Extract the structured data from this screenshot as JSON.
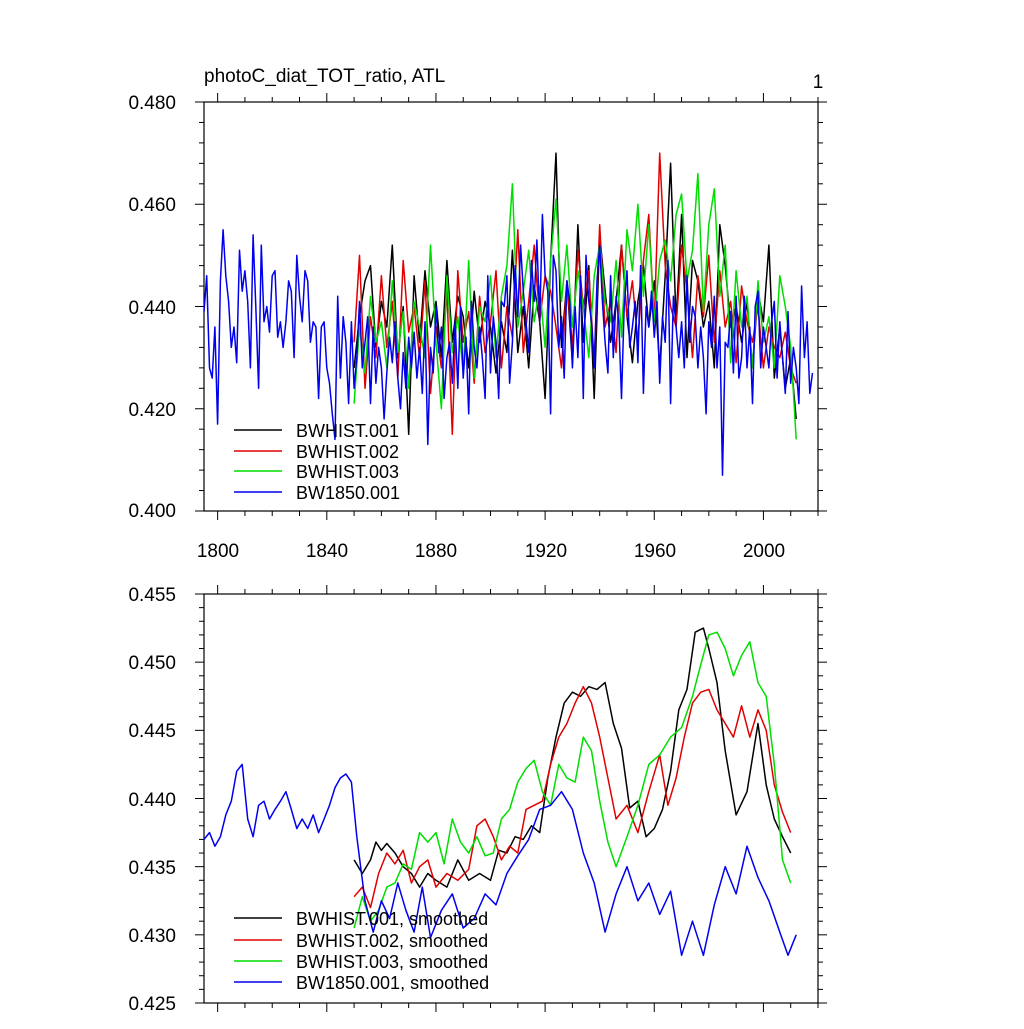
{
  "chart_data": [
    {
      "type": "line",
      "title": "photoC_diat_TOT_ratio, ATL",
      "panel_label": "1",
      "xlabel": "",
      "ylabel": "",
      "xlim": [
        1795,
        2020
      ],
      "ylim": [
        0.4,
        0.48
      ],
      "x_ticks": [
        1800,
        1840,
        1880,
        1920,
        1960,
        2000
      ],
      "y_ticks": [
        "0.400",
        "0.420",
        "0.440",
        "0.460",
        "0.480"
      ],
      "grid": false,
      "legend_position": "bottom-left",
      "series": [
        {
          "name": "BWHIST.001",
          "color": "#000000",
          "x_start": 1850,
          "x_step": 2,
          "values": [
            0.428,
            0.438,
            0.445,
            0.448,
            0.432,
            0.441,
            0.436,
            0.452,
            0.43,
            0.44,
            0.415,
            0.446,
            0.433,
            0.447,
            0.436,
            0.441,
            0.43,
            0.449,
            0.433,
            0.442,
            0.438,
            0.428,
            0.443,
            0.433,
            0.441,
            0.436,
            0.427,
            0.437,
            0.431,
            0.451,
            0.431,
            0.44,
            0.428,
            0.444,
            0.437,
            0.422,
            0.449,
            0.47,
            0.432,
            0.445,
            0.429,
            0.456,
            0.433,
            0.448,
            0.422,
            0.454,
            0.443,
            0.433,
            0.441,
            0.452,
            0.438,
            0.429,
            0.441,
            0.448,
            0.436,
            0.445,
            0.428,
            0.446,
            0.468,
            0.437,
            0.458,
            0.43,
            0.449,
            0.445,
            0.436,
            0.441,
            0.428,
            0.456,
            0.448,
            0.436,
            0.44,
            0.433,
            0.441,
            0.428,
            0.443,
            0.437,
            0.452,
            0.426,
            0.436,
            0.424,
            0.43,
            0.418
          ]
        },
        {
          "name": "BWHIST.002",
          "color": "#e00000",
          "x_start": 1850,
          "x_step": 2,
          "values": [
            0.433,
            0.45,
            0.424,
            0.438,
            0.43,
            0.446,
            0.432,
            0.441,
            0.426,
            0.449,
            0.435,
            0.44,
            0.43,
            0.445,
            0.423,
            0.436,
            0.428,
            0.443,
            0.415,
            0.447,
            0.433,
            0.439,
            0.425,
            0.442,
            0.431,
            0.437,
            0.447,
            0.428,
            0.44,
            0.434,
            0.455,
            0.431,
            0.441,
            0.452,
            0.437,
            0.446,
            0.443,
            0.436,
            0.428,
            0.445,
            0.432,
            0.451,
            0.44,
            0.447,
            0.429,
            0.456,
            0.436,
            0.441,
            0.431,
            0.452,
            0.438,
            0.445,
            0.433,
            0.449,
            0.458,
            0.437,
            0.47,
            0.448,
            0.44,
            0.436,
            0.452,
            0.443,
            0.43,
            0.446,
            0.438,
            0.45,
            0.433,
            0.447,
            0.436,
            0.441,
            0.429,
            0.444,
            0.437,
            0.433,
            0.44,
            0.428,
            0.436,
            0.432,
            0.43,
            0.435,
            0.428,
            0.425
          ]
        },
        {
          "name": "BWHIST.003",
          "color": "#00dd00",
          "x_start": 1850,
          "x_step": 2,
          "values": [
            0.421,
            0.436,
            0.427,
            0.442,
            0.433,
            0.437,
            0.428,
            0.445,
            0.431,
            0.439,
            0.424,
            0.441,
            0.436,
            0.43,
            0.452,
            0.433,
            0.42,
            0.446,
            0.431,
            0.438,
            0.427,
            0.449,
            0.426,
            0.44,
            0.437,
            0.446,
            0.43,
            0.442,
            0.448,
            0.464,
            0.436,
            0.443,
            0.451,
            0.437,
            0.444,
            0.432,
            0.449,
            0.461,
            0.441,
            0.452,
            0.436,
            0.447,
            0.44,
            0.43,
            0.446,
            0.452,
            0.441,
            0.437,
            0.449,
            0.434,
            0.455,
            0.447,
            0.46,
            0.442,
            0.456,
            0.437,
            0.449,
            0.453,
            0.445,
            0.458,
            0.462,
            0.445,
            0.451,
            0.466,
            0.439,
            0.456,
            0.463,
            0.442,
            0.452,
            0.429,
            0.447,
            0.436,
            0.442,
            0.428,
            0.445,
            0.433,
            0.438,
            0.428,
            0.446,
            0.44,
            0.432,
            0.414
          ]
        },
        {
          "name": "BW1850.001",
          "color": "#0000ee",
          "x_start": 1795,
          "x_step": 1,
          "values": [
            0.439,
            0.446,
            0.428,
            0.426,
            0.436,
            0.417,
            0.445,
            0.455,
            0.446,
            0.441,
            0.432,
            0.436,
            0.429,
            0.451,
            0.443,
            0.447,
            0.441,
            0.428,
            0.454,
            0.44,
            0.424,
            0.452,
            0.437,
            0.44,
            0.435,
            0.446,
            0.447,
            0.434,
            0.437,
            0.432,
            0.437,
            0.445,
            0.443,
            0.43,
            0.45,
            0.442,
            0.437,
            0.447,
            0.445,
            0.433,
            0.437,
            0.436,
            0.422,
            0.436,
            0.437,
            0.428,
            0.425,
            0.419,
            0.414,
            0.442,
            0.426,
            0.438,
            0.433,
            0.421,
            0.437,
            0.424,
            0.43,
            0.441,
            0.428,
            0.433,
            0.438,
            0.421,
            0.436,
            0.425,
            0.432,
            0.428,
            0.418,
            0.427,
            0.434,
            0.429,
            0.437,
            0.426,
            0.42,
            0.431,
            0.424,
            0.434,
            0.428,
            0.435,
            0.426,
            0.432,
            0.423,
            0.437,
            0.413,
            0.432,
            0.427,
            0.44,
            0.431,
            0.436,
            0.422,
            0.43,
            0.433,
            0.425,
            0.437,
            0.424,
            0.44,
            0.426,
            0.434,
            0.419,
            0.441,
            0.432,
            0.428,
            0.436,
            0.43,
            0.422,
            0.446,
            0.427,
            0.438,
            0.433,
            0.422,
            0.441,
            0.44,
            0.446,
            0.425,
            0.433,
            0.448,
            0.438,
            0.452,
            0.443,
            0.437,
            0.431,
            0.449,
            0.441,
            0.453,
            0.437,
            0.458,
            0.446,
            0.443,
            0.419,
            0.45,
            0.447,
            0.432,
            0.438,
            0.426,
            0.445,
            0.441,
            0.428,
            0.44,
            0.43,
            0.446,
            0.422,
            0.45,
            0.441,
            0.437,
            0.428,
            0.445,
            0.452,
            0.441,
            0.433,
            0.427,
            0.446,
            0.43,
            0.442,
            0.437,
            0.422,
            0.44,
            0.447,
            0.432,
            0.436,
            0.441,
            0.429,
            0.448,
            0.423,
            0.44,
            0.436,
            0.443,
            0.434,
            0.441,
            0.425,
            0.438,
            0.433,
            0.449,
            0.421,
            0.442,
            0.436,
            0.43,
            0.437,
            0.428,
            0.446,
            0.433,
            0.44,
            0.438,
            0.428,
            0.436,
            0.43,
            0.419,
            0.437,
            0.432,
            0.442,
            0.428,
            0.436,
            0.407,
            0.433,
            0.432,
            0.439,
            0.427,
            0.442,
            0.426,
            0.43,
            0.442,
            0.428,
            0.436,
            0.421,
            0.44,
            0.443,
            0.428,
            0.436,
            0.432,
            0.428,
            0.437,
            0.441,
            0.426,
            0.437,
            0.43,
            0.423,
            0.439,
            0.425,
            0.432,
            0.428,
            0.421,
            0.444,
            0.43,
            0.437,
            0.423,
            0.427
          ]
        }
      ]
    },
    {
      "type": "line",
      "title": "",
      "xlabel": "",
      "ylabel": "",
      "xlim": [
        1795,
        2020
      ],
      "ylim": [
        0.425,
        0.455
      ],
      "y_ticks": [
        "0.425",
        "0.430",
        "0.435",
        "0.440",
        "0.445",
        "0.450",
        "0.455"
      ],
      "grid": false,
      "legend_position": "bottom-left",
      "series": [
        {
          "name": "BWHIST.001, smoothed",
          "color": "#000000",
          "x": [
            1850,
            1853,
            1856,
            1858,
            1860,
            1862,
            1865,
            1868,
            1871,
            1874,
            1877,
            1880,
            1884,
            1888,
            1892,
            1896,
            1900,
            1903,
            1906,
            1909,
            1912,
            1915,
            1918,
            1921,
            1924,
            1927,
            1930,
            1933,
            1936,
            1939,
            1942,
            1945,
            1948,
            1951,
            1954,
            1957,
            1960,
            1963,
            1966,
            1969,
            1972,
            1975,
            1978,
            1980,
            1983,
            1986,
            1990,
            1994,
            1998,
            2001,
            2004,
            2007,
            2010
          ],
          "values": [
            0.4355,
            0.4345,
            0.4355,
            0.4368,
            0.4362,
            0.4367,
            0.436,
            0.435,
            0.4345,
            0.4335,
            0.4345,
            0.434,
            0.4335,
            0.4355,
            0.434,
            0.4345,
            0.434,
            0.4362,
            0.436,
            0.4372,
            0.437,
            0.438,
            0.4375,
            0.4415,
            0.4445,
            0.447,
            0.4478,
            0.4475,
            0.4482,
            0.448,
            0.4485,
            0.4455,
            0.4437,
            0.4393,
            0.4398,
            0.4372,
            0.4378,
            0.4392,
            0.442,
            0.4465,
            0.448,
            0.4522,
            0.4525,
            0.451,
            0.4485,
            0.4435,
            0.4388,
            0.4405,
            0.4455,
            0.441,
            0.4385,
            0.4372,
            0.436
          ]
        },
        {
          "name": "BWHIST.002, smoothed",
          "color": "#e00000",
          "x": [
            1850,
            1853,
            1856,
            1859,
            1862,
            1865,
            1868,
            1871,
            1874,
            1877,
            1880,
            1884,
            1888,
            1892,
            1895,
            1898,
            1901,
            1904,
            1907,
            1910,
            1913,
            1916,
            1919,
            1922,
            1925,
            1928,
            1931,
            1934,
            1937,
            1940,
            1943,
            1946,
            1950,
            1954,
            1958,
            1962,
            1965,
            1968,
            1971,
            1974,
            1977,
            1980,
            1983,
            1986,
            1989,
            1992,
            1995,
            1998,
            2001,
            2004,
            2007,
            2010
          ],
          "values": [
            0.4328,
            0.4335,
            0.432,
            0.4345,
            0.436,
            0.4352,
            0.4362,
            0.4338,
            0.435,
            0.4355,
            0.4335,
            0.4345,
            0.434,
            0.4348,
            0.438,
            0.4385,
            0.4372,
            0.4355,
            0.4365,
            0.436,
            0.4392,
            0.4395,
            0.4398,
            0.4425,
            0.4445,
            0.4455,
            0.447,
            0.4482,
            0.447,
            0.4445,
            0.4415,
            0.4385,
            0.4395,
            0.4375,
            0.4405,
            0.4432,
            0.4395,
            0.4415,
            0.4445,
            0.447,
            0.4478,
            0.448,
            0.4465,
            0.4455,
            0.4445,
            0.4468,
            0.4445,
            0.4465,
            0.445,
            0.441,
            0.439,
            0.4375
          ]
        },
        {
          "name": "BWHIST.003, smoothed",
          "color": "#00dd00",
          "x": [
            1850,
            1853,
            1856,
            1859,
            1862,
            1865,
            1868,
            1871,
            1874,
            1877,
            1880,
            1883,
            1886,
            1889,
            1892,
            1895,
            1898,
            1901,
            1904,
            1907,
            1910,
            1913,
            1916,
            1919,
            1922,
            1925,
            1928,
            1931,
            1934,
            1937,
            1940,
            1943,
            1946,
            1950,
            1954,
            1958,
            1962,
            1966,
            1970,
            1974,
            1977,
            1980,
            1983,
            1986,
            1989,
            1992,
            1995,
            1998,
            2001,
            2004,
            2007,
            2010
          ],
          "values": [
            0.4305,
            0.4328,
            0.431,
            0.4318,
            0.4335,
            0.4338,
            0.4352,
            0.4348,
            0.4375,
            0.4368,
            0.4375,
            0.4352,
            0.4385,
            0.4368,
            0.436,
            0.4372,
            0.4358,
            0.436,
            0.4385,
            0.4392,
            0.4412,
            0.4422,
            0.4428,
            0.4405,
            0.4395,
            0.4425,
            0.4415,
            0.4412,
            0.4445,
            0.4435,
            0.4398,
            0.4368,
            0.435,
            0.4372,
            0.4395,
            0.4425,
            0.4432,
            0.4445,
            0.4452,
            0.4475,
            0.4498,
            0.452,
            0.4522,
            0.451,
            0.449,
            0.4505,
            0.4515,
            0.4485,
            0.4475,
            0.4425,
            0.4355,
            0.4338
          ]
        },
        {
          "name": "BW1850.001, smoothed",
          "color": "#0000ee",
          "x": [
            1795,
            1797,
            1799,
            1801,
            1803,
            1805,
            1807,
            1809,
            1811,
            1813,
            1815,
            1817,
            1819,
            1821,
            1823,
            1825,
            1827,
            1829,
            1831,
            1833,
            1835,
            1837,
            1839,
            1841,
            1843,
            1845,
            1847,
            1849,
            1851,
            1854,
            1857,
            1860,
            1863,
            1866,
            1869,
            1872,
            1875,
            1878,
            1882,
            1886,
            1890,
            1894,
            1898,
            1902,
            1906,
            1910,
            1914,
            1918,
            1922,
            1926,
            1930,
            1934,
            1938,
            1942,
            1946,
            1950,
            1954,
            1958,
            1962,
            1966,
            1970,
            1974,
            1978,
            1982,
            1986,
            1990,
            1994,
            1998,
            2002,
            2006,
            2009,
            2012
          ],
          "values": [
            0.437,
            0.4375,
            0.4365,
            0.4372,
            0.4388,
            0.4398,
            0.442,
            0.4425,
            0.4385,
            0.4372,
            0.4395,
            0.4398,
            0.4385,
            0.4392,
            0.4398,
            0.4405,
            0.4392,
            0.4378,
            0.4385,
            0.4378,
            0.4388,
            0.4375,
            0.4385,
            0.4395,
            0.4408,
            0.4415,
            0.4418,
            0.4412,
            0.4372,
            0.4325,
            0.4302,
            0.4325,
            0.4312,
            0.4338,
            0.4318,
            0.4302,
            0.4335,
            0.4298,
            0.4318,
            0.433,
            0.4305,
            0.4312,
            0.433,
            0.4322,
            0.4345,
            0.4358,
            0.437,
            0.4392,
            0.4395,
            0.4405,
            0.4392,
            0.436,
            0.4338,
            0.4302,
            0.433,
            0.435,
            0.4325,
            0.4338,
            0.4315,
            0.4332,
            0.4285,
            0.431,
            0.4285,
            0.4322,
            0.435,
            0.433,
            0.4365,
            0.4342,
            0.4325,
            0.4302,
            0.4285,
            0.43
          ]
        }
      ]
    }
  ]
}
